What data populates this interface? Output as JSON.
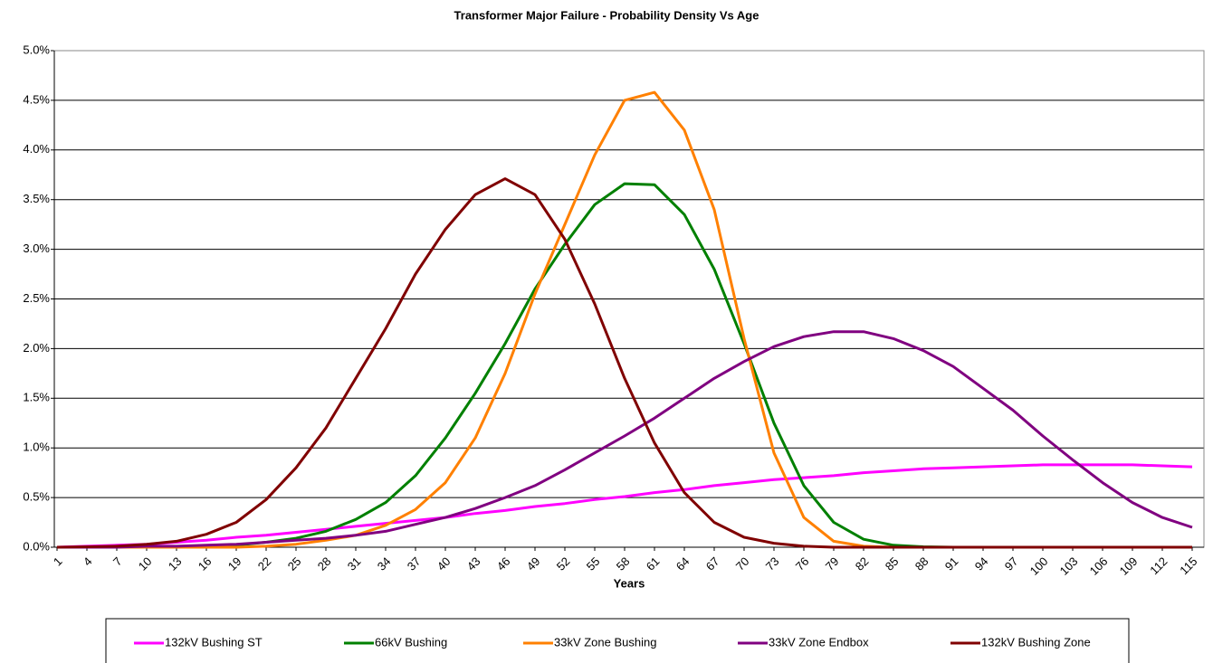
{
  "chart_data": {
    "type": "line",
    "title": "Transformer Major Failure -  Probability Density Vs Age",
    "x_label": "Years",
    "x": [
      1,
      4,
      7,
      10,
      13,
      16,
      19,
      22,
      25,
      28,
      31,
      34,
      37,
      40,
      43,
      46,
      49,
      52,
      55,
      58,
      61,
      64,
      67,
      70,
      73,
      76,
      79,
      82,
      85,
      88,
      91,
      94,
      97,
      100,
      103,
      106,
      109,
      112,
      115
    ],
    "xlim": [
      1,
      116
    ],
    "xticks": [
      1,
      4,
      7,
      10,
      13,
      16,
      19,
      22,
      25,
      28,
      31,
      34,
      37,
      40,
      43,
      46,
      49,
      52,
      55,
      58,
      61,
      64,
      67,
      70,
      73,
      76,
      79,
      82,
      85,
      88,
      91,
      94,
      97,
      100,
      103,
      106,
      109,
      112,
      115
    ],
    "ylim": [
      0,
      5
    ],
    "yticks": [
      {
        "value": 0,
        "label": "0.0%"
      },
      {
        "value": 0.5,
        "label": "0.5%"
      },
      {
        "value": 1,
        "label": "1.0%"
      },
      {
        "value": 1.5,
        "label": "1.5%"
      },
      {
        "value": 2,
        "label": "2.0%"
      },
      {
        "value": 2.5,
        "label": "2.5%"
      },
      {
        "value": 3,
        "label": "3.0%"
      },
      {
        "value": 3.5,
        "label": "3.5%"
      },
      {
        "value": 4,
        "label": "4.0%"
      },
      {
        "value": 4.5,
        "label": "4.5%"
      },
      {
        "value": 5,
        "label": "5.0%"
      }
    ],
    "grid": true,
    "legend": "bottom",
    "series": [
      {
        "name": "132kV Bushing ST",
        "color": "#ff00ff",
        "values": [
          0,
          0.01,
          0.02,
          0.03,
          0.05,
          0.07,
          0.1,
          0.12,
          0.15,
          0.18,
          0.21,
          0.24,
          0.27,
          0.3,
          0.34,
          0.37,
          0.41,
          0.44,
          0.48,
          0.51,
          0.55,
          0.58,
          0.62,
          0.65,
          0.68,
          0.7,
          0.72,
          0.75,
          0.77,
          0.79,
          0.8,
          0.81,
          0.82,
          0.83,
          0.83,
          0.83,
          0.83,
          0.82,
          0.81
        ]
      },
      {
        "name": "66kV Bushing",
        "color": "#008000",
        "values": [
          0,
          0,
          0,
          0,
          0,
          0.01,
          0.02,
          0.05,
          0.09,
          0.16,
          0.28,
          0.45,
          0.72,
          1.1,
          1.55,
          2.05,
          2.6,
          3.05,
          3.45,
          3.66,
          3.65,
          3.35,
          2.8,
          2.05,
          1.25,
          0.62,
          0.25,
          0.08,
          0.02,
          0.005,
          0,
          0,
          0,
          0,
          0,
          0,
          0,
          0,
          0
        ]
      },
      {
        "name": "33kV Zone Bushing",
        "color": "#ff8000",
        "values": [
          0,
          0,
          0,
          0,
          0,
          0,
          0,
          0.01,
          0.03,
          0.07,
          0.12,
          0.22,
          0.38,
          0.65,
          1.1,
          1.75,
          2.55,
          3.25,
          3.95,
          4.5,
          4.58,
          4.2,
          3.4,
          2.1,
          0.95,
          0.3,
          0.06,
          0.01,
          0,
          0,
          0,
          0,
          0,
          0,
          0,
          0,
          0,
          0,
          0
        ]
      },
      {
        "name": "33kV Zone Endbox",
        "color": "#800080",
        "values": [
          0,
          0,
          0,
          0.01,
          0.01,
          0.02,
          0.03,
          0.05,
          0.07,
          0.09,
          0.12,
          0.16,
          0.23,
          0.3,
          0.39,
          0.5,
          0.62,
          0.78,
          0.95,
          1.12,
          1.3,
          1.5,
          1.7,
          1.87,
          2.02,
          2.12,
          2.17,
          2.17,
          2.1,
          1.98,
          1.82,
          1.6,
          1.38,
          1.12,
          0.88,
          0.65,
          0.45,
          0.3,
          0.2
        ]
      },
      {
        "name": "132kV Bushing Zone",
        "color": "#800000",
        "values": [
          0,
          0.005,
          0.01,
          0.03,
          0.06,
          0.13,
          0.25,
          0.48,
          0.8,
          1.2,
          1.7,
          2.2,
          2.75,
          3.2,
          3.55,
          3.71,
          3.55,
          3.1,
          2.45,
          1.7,
          1.05,
          0.55,
          0.25,
          0.1,
          0.04,
          0.01,
          0,
          0,
          0,
          0,
          0,
          0,
          0,
          0,
          0,
          0,
          0,
          0,
          0
        ]
      }
    ]
  }
}
